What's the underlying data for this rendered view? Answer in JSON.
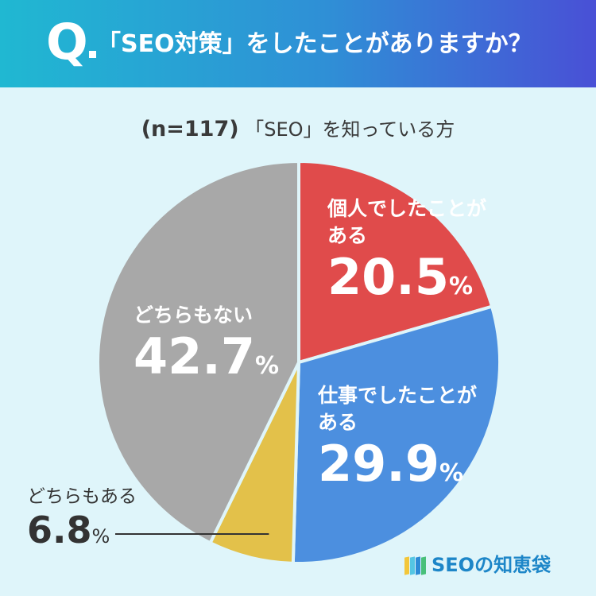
{
  "header": {
    "q_letter": "Q",
    "question": "「SEO対策」をしたことがありますか？"
  },
  "subtitle": {
    "n_label": "(n=117)",
    "audience": "「SEO」を知っている方"
  },
  "logo": {
    "text": "SEOの知恵袋",
    "colors": [
      "#f3c63a",
      "#55c6e3",
      "#2d8bd6",
      "#48c07a"
    ]
  },
  "chart_data": {
    "type": "pie",
    "start_angle_deg": 0,
    "direction": "clockwise",
    "slices": [
      {
        "label_line1": "個人でしたことが",
        "label_line2": "ある",
        "value": 20.5,
        "value_text": "20.5",
        "unit": "%",
        "color": "#e04b4b"
      },
      {
        "label_line1": "仕事でしたことが",
        "label_line2": "ある",
        "value": 29.9,
        "value_text": "29.9",
        "unit": "%",
        "color": "#4c8fdf"
      },
      {
        "label_line1": "どちらもある",
        "label_line2": "",
        "value": 6.8,
        "value_text": "6.8",
        "unit": "%",
        "color": "#e3c14a"
      },
      {
        "label_line1": "どちらもない",
        "label_line2": "",
        "value": 42.7,
        "value_text": "42.7",
        "unit": "%",
        "color": "#a8a8a8"
      }
    ]
  }
}
